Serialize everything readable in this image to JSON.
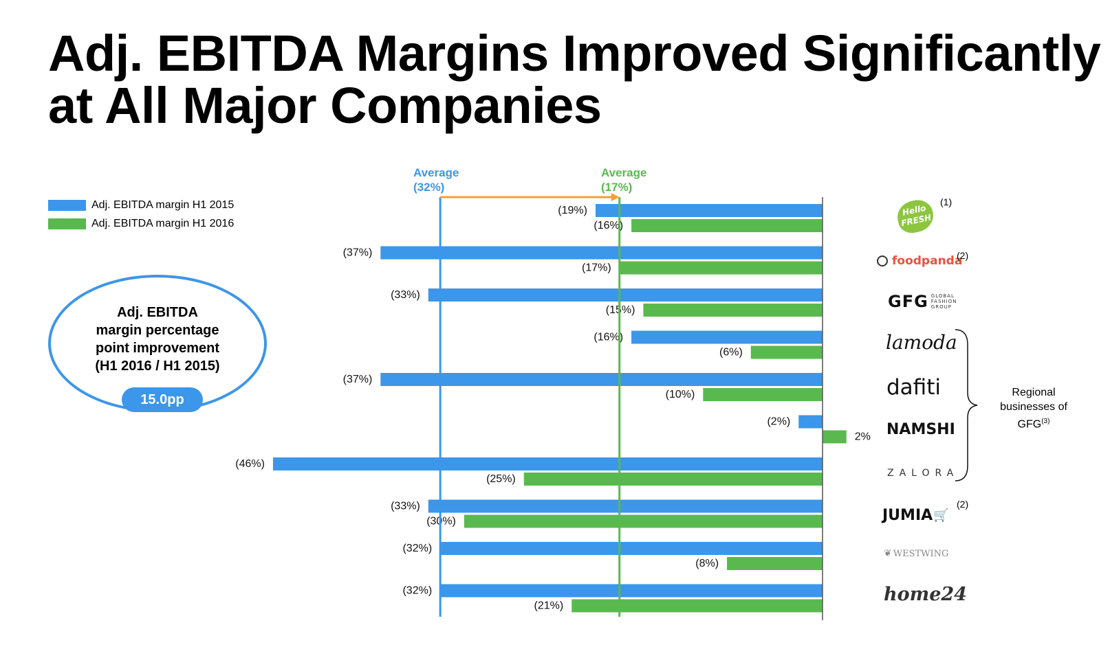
{
  "title": "Adj. EBITDA Margins Improved Significantly at All Major Companies",
  "colors": {
    "h1_2015": "#3c96e9",
    "h1_2016": "#5ab94e",
    "arrow": "#f5a032"
  },
  "legend": [
    {
      "label": "Adj. EBITDA margin H1 2015",
      "color": "#3c96e9"
    },
    {
      "label": "Adj. EBITDA margin H1 2016",
      "color": "#5ab94e"
    }
  ],
  "callout": {
    "text": "Adj. EBITDA\nmargin percentage\npoint improvement\n(H1 2016 / H1 2015)",
    "value": "15.0pp"
  },
  "averages": {
    "h1_2015": {
      "label": "Average\n(32%)",
      "value": -32
    },
    "h1_2016": {
      "label": "Average\n(17%)",
      "value": -17
    }
  },
  "companies": [
    {
      "name": "HelloFresh",
      "logo_text": "Hello FRESH",
      "icon": "hellofresh-logo",
      "note": "(1)"
    },
    {
      "name": "foodpanda",
      "logo_text": "foodpanda",
      "icon": "panda-icon",
      "note": "(2)"
    },
    {
      "name": "GFG",
      "logo_text": "GFG",
      "logo_sub": "GLOBAL FASHION GROUP",
      "icon": "gfg-logo",
      "note": ""
    },
    {
      "name": "lamoda",
      "logo_text": "lamoda",
      "icon": "lamoda-logo",
      "note": ""
    },
    {
      "name": "dafiti",
      "logo_text": "dafiti",
      "icon": "dafiti-logo",
      "note": ""
    },
    {
      "name": "NAMSHI",
      "logo_text": "NAMSHI",
      "icon": "namshi-logo",
      "note": ""
    },
    {
      "name": "ZALORA",
      "logo_text": "ZALORA",
      "icon": "zalora-logo",
      "note": ""
    },
    {
      "name": "JUMIA",
      "logo_text": "JUMIA",
      "icon": "cart-icon",
      "note": "(2)"
    },
    {
      "name": "WESTWING",
      "logo_text": "WESTWING",
      "icon": "westwing-logo",
      "note": ""
    },
    {
      "name": "home24",
      "logo_text": "home24",
      "icon": "home24-logo",
      "note": ""
    }
  ],
  "regional_label": "Regional businesses of GFG",
  "regional_note": "(3)",
  "chart_data": {
    "type": "bar",
    "orientation": "horizontal",
    "categories": [
      "HelloFresh",
      "foodpanda",
      "GFG",
      "lamoda",
      "dafiti",
      "NAMSHI",
      "ZALORA",
      "JUMIA",
      "WESTWING",
      "home24"
    ],
    "series": [
      {
        "name": "Adj. EBITDA margin H1 2015",
        "values": [
          -19,
          -37,
          -33,
          -16,
          -37,
          -2,
          -46,
          -33,
          -32,
          -32
        ],
        "labels": [
          "(19%)",
          "(37%)",
          "(33%)",
          "(16%)",
          "(37%)",
          "(2%)",
          "(46%)",
          "(33%)",
          "(32%)",
          "(32%)"
        ]
      },
      {
        "name": "Adj. EBITDA margin H1 2016",
        "values": [
          -16,
          -17,
          -15,
          -6,
          -10,
          2,
          -25,
          -30,
          -8,
          -21
        ],
        "labels": [
          "(16%)",
          "(17%)",
          "(15%)",
          "(6%)",
          "(10%)",
          "2%",
          "(25%)",
          "(30%)",
          "(8%)",
          "(21%)"
        ]
      }
    ],
    "xlim": [
      -46,
      2
    ],
    "unit": "%"
  }
}
